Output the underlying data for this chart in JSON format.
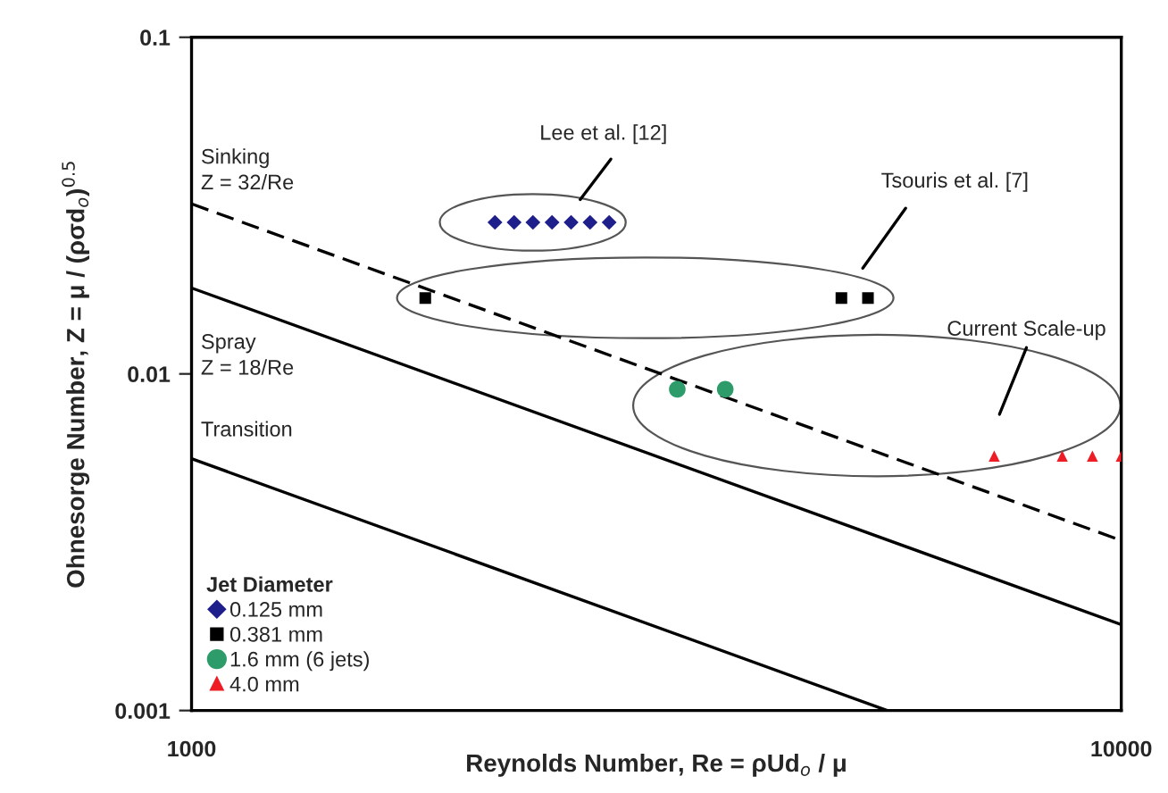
{
  "chart_data": {
    "type": "scatter",
    "xlabel": "Reynolds Number, Re = ρUd$_{o}$ / μ",
    "ylabel": "Ohnesorge Number, Z = μ / (ρσd$_{o}$)$^{0.5}$",
    "legend_title": "Jet Diameter",
    "log": "xy",
    "xlim": [
      1000,
      10000
    ],
    "ylim": [
      0.001,
      0.1
    ],
    "xticks": [
      1000,
      10000
    ],
    "yticks": [
      0.001,
      0.01,
      0.1
    ],
    "grid": false,
    "legend": "bottom left",
    "series": [
      {
        "name": "0.125 mm",
        "marker": "diamond",
        "color": "#1f1f8c",
        "x": [
          2120,
          2223,
          2329,
          2442,
          2560,
          2683,
          2813
        ],
        "values": [
          0.0282,
          0.0282,
          0.0282,
          0.0282,
          0.0282,
          0.0282,
          0.0282
        ]
      },
      {
        "name": "0.381 mm",
        "marker": "square",
        "color": "#000000",
        "x": [
          1784,
          5000,
          5340
        ],
        "values": [
          0.0168,
          0.0168,
          0.0168
        ]
      },
      {
        "name": "1.6 mm (6 jets)",
        "marker": "circle",
        "color": "#2e9b6a",
        "x": [
          3330,
          3750
        ],
        "values": [
          0.009,
          0.009
        ]
      },
      {
        "name": "4.0 mm",
        "marker": "triangle",
        "color": "#ee1c24",
        "x": [
          7300,
          8640,
          9310,
          10000
        ],
        "values": [
          0.0057,
          0.0057,
          0.0057,
          0.0057
        ]
      },
      {
        "type": "line",
        "line_style": "dashed",
        "color": "#000000",
        "x": [
          1000,
          10000
        ],
        "values": [
          0.032,
          0.0032
        ]
      },
      {
        "type": "line",
        "line_style": "solid",
        "color": "#000000",
        "x": [
          1000,
          10000
        ],
        "values": [
          0.018,
          0.0018
        ]
      },
      {
        "type": "line",
        "line_style": "solid",
        "color": "#000000",
        "x": [
          1000,
          5600
        ],
        "values": [
          0.0056,
          0.001
        ]
      }
    ],
    "annotations": [
      "Lee et al. [12]",
      "Tsouris et al. [7]",
      "Current Scale-up",
      "Sinking\nZ = 32/Re",
      "Spray\nZ = 18/Re",
      "Transition"
    ]
  }
}
